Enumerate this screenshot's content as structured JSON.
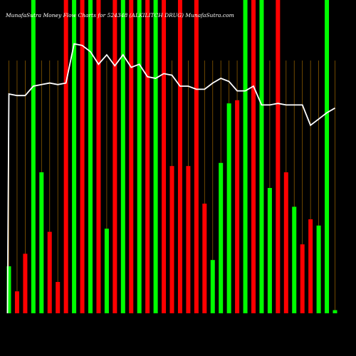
{
  "chart_data": {
    "type": "bar",
    "title": "MunafaSutra Money Flow Charts for 524348 (ALKILITCH DRUG) MunafaSutra.com",
    "xlabel": "",
    "ylabel": "",
    "categories": [],
    "grid": true,
    "colors": {
      "background": "#000000",
      "up": "#00ff00",
      "down": "#ff0000",
      "grid": "#8a5a00",
      "line": "#ffffff",
      "text": "#ffffff"
    },
    "volume_ylim": [
      0,
      100
    ],
    "bars": [
      {
        "value": 15,
        "dir": "up"
      },
      {
        "value": 7,
        "dir": "down"
      },
      {
        "value": 19,
        "dir": "down"
      },
      {
        "value": 100,
        "dir": "up"
      },
      {
        "value": 45,
        "dir": "up"
      },
      {
        "value": 26,
        "dir": "down"
      },
      {
        "value": 10,
        "dir": "down"
      },
      {
        "value": 100,
        "dir": "down"
      },
      {
        "value": 100,
        "dir": "up"
      },
      {
        "value": 100,
        "dir": "down"
      },
      {
        "value": 100,
        "dir": "up"
      },
      {
        "value": 100,
        "dir": "down"
      },
      {
        "value": 27,
        "dir": "up"
      },
      {
        "value": 100,
        "dir": "down"
      },
      {
        "value": 100,
        "dir": "up"
      },
      {
        "value": 100,
        "dir": "down"
      },
      {
        "value": 100,
        "dir": "up"
      },
      {
        "value": 100,
        "dir": "down"
      },
      {
        "value": 100,
        "dir": "up"
      },
      {
        "value": 100,
        "dir": "down"
      },
      {
        "value": 47,
        "dir": "down"
      },
      {
        "value": 100,
        "dir": "down"
      },
      {
        "value": 47,
        "dir": "down"
      },
      {
        "value": 100,
        "dir": "down"
      },
      {
        "value": 35,
        "dir": "down"
      },
      {
        "value": 17,
        "dir": "up"
      },
      {
        "value": 48,
        "dir": "up"
      },
      {
        "value": 67,
        "dir": "up"
      },
      {
        "value": 68,
        "dir": "down"
      },
      {
        "value": 100,
        "dir": "up"
      },
      {
        "value": 100,
        "dir": "down"
      },
      {
        "value": 100,
        "dir": "up"
      },
      {
        "value": 40,
        "dir": "up"
      },
      {
        "value": 100,
        "dir": "down"
      },
      {
        "value": 45,
        "dir": "down"
      },
      {
        "value": 34,
        "dir": "up"
      },
      {
        "value": 22,
        "dir": "down"
      },
      {
        "value": 30,
        "dir": "down"
      },
      {
        "value": 28,
        "dir": "up"
      },
      {
        "value": 100,
        "dir": "up"
      },
      {
        "value": 1,
        "dir": "up"
      }
    ],
    "price_line": [
      70,
      69.5,
      69.5,
      72.5,
      73,
      73.5,
      73,
      73.5,
      86,
      85.5,
      83.5,
      79.5,
      82.5,
      79,
      82.5,
      78.5,
      79.5,
      75.5,
      75,
      76.5,
      76,
      72.5,
      72.5,
      71.5,
      71.5,
      73.5,
      75,
      74,
      71,
      71,
      72.5,
      66.5,
      66.5,
      67,
      66.5,
      66.5,
      66.5,
      60,
      62,
      64,
      65.5
    ],
    "price_ylim": [
      0,
      100
    ]
  }
}
